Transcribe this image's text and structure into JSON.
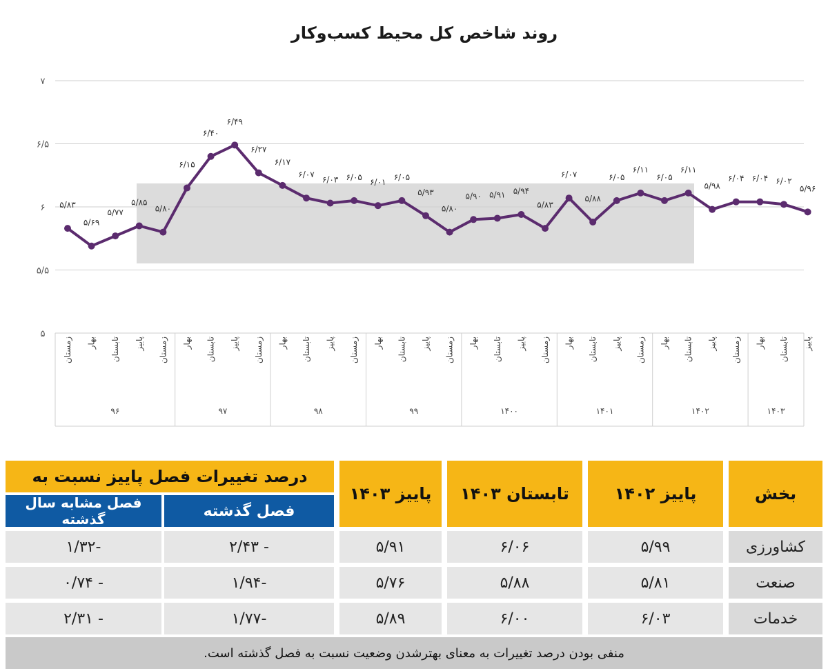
{
  "chart_data": {
    "type": "line",
    "title": "روند شاخص کل محیط کسب‌وکار",
    "xlabel": "",
    "ylabel": "",
    "ylim": [
      5,
      7
    ],
    "yticks": [
      "۵",
      "۵/۵",
      "۶",
      "۶/۵",
      "۷"
    ],
    "ytick_values": [
      5,
      5.5,
      6,
      6.5,
      7
    ],
    "grid": true,
    "line_color": "#5b2b6e",
    "groups": [
      {
        "year": "۹۶",
        "seasons": [
          "زمستان",
          "بهار",
          "تابستان",
          "پاییز",
          "زمستان"
        ]
      },
      {
        "year": "۹۷",
        "seasons": [
          "بهار",
          "تابستان",
          "پاییز",
          "زمستان"
        ]
      },
      {
        "year": "۹۸",
        "seasons": [
          "بهار",
          "تابستان",
          "پاییز",
          "زمستان"
        ]
      },
      {
        "year": "۹۹",
        "seasons": [
          "بهار",
          "تابستان",
          "پاییز",
          "زمستان"
        ]
      },
      {
        "year": "۱۴۰۰",
        "seasons": [
          "بهار",
          "تابستان",
          "پاییز",
          "زمستان"
        ]
      },
      {
        "year": "۱۴۰۱",
        "seasons": [
          "بهار",
          "تابستان",
          "پاییز",
          "زمستان"
        ]
      },
      {
        "year": "۱۴۰۲",
        "seasons": [
          "بهار",
          "تابستان",
          "پاییز",
          "زمستان"
        ]
      },
      {
        "year": "۱۴۰۳",
        "seasons": [
          "بهار",
          "تابستان",
          "پاییز"
        ]
      }
    ],
    "values": [
      5.83,
      5.69,
      5.77,
      5.85,
      5.8,
      6.15,
      6.4,
      6.49,
      6.27,
      6.17,
      6.07,
      6.03,
      6.05,
      6.01,
      6.05,
      5.93,
      5.8,
      5.9,
      5.91,
      5.94,
      5.83,
      6.07,
      5.88,
      6.05,
      6.11,
      6.05,
      6.11,
      5.98,
      6.04,
      6.04,
      6.02,
      5.96
    ],
    "labels": [
      "۵/۸۳",
      "۵/۶۹",
      "۵/۷۷",
      "۵/۸۵",
      "۵/۸۰",
      "۶/۱۵",
      "۶/۴۰",
      "۶/۴۹",
      "۶/۲۷",
      "۶/۱۷",
      "۶/۰۷",
      "۶/۰۳",
      "۶/۰۵",
      "۶/۰۱",
      "۶/۰۵",
      "۵/۹۳",
      "۵/۸۰",
      "۵/۹۰",
      "۵/۹۱",
      "۵/۹۴",
      "۵/۸۳",
      "۶/۰۷",
      "۵/۸۸",
      "۶/۰۵",
      "۶/۱۱",
      "۶/۰۵",
      "۶/۱۱",
      "۵/۹۸",
      "۶/۰۴",
      "۶/۰۴",
      "۶/۰۲",
      "۵/۹۶"
    ]
  },
  "table": {
    "headers": {
      "sector": "بخش",
      "autumn_1402": "پاییز ۱۴۰۲",
      "summer_1403": "تابستان ۱۴۰۳",
      "autumn_1403": "پاییز ۱۴۰۳",
      "change_group": "درصد تغییرات فصل پاییز نسبت به",
      "prev_season": "فصل گذشته",
      "same_season_last_year": "فصل مشابه سال گذشته"
    },
    "rows": [
      {
        "sector": "کشاورزی",
        "autumn_1402": "۵/۹۹",
        "summer_1403": "۶/۰۶",
        "autumn_1403": "۵/۹۱",
        "prev_season": "- ۲/۴۳",
        "same_season_last_year": "-۱/۳۲"
      },
      {
        "sector": "صنعت",
        "autumn_1402": "۵/۸۱",
        "summer_1403": "۵/۸۸",
        "autumn_1403": "۵/۷۶",
        "prev_season": "-۱/۹۴",
        "same_season_last_year": "- ۰/۷۴"
      },
      {
        "sector": "خدمات",
        "autumn_1402": "۶/۰۳",
        "summer_1403": "۶/۰۰",
        "autumn_1403": "۵/۸۹",
        "prev_season": "-۱/۷۷",
        "same_season_last_year": "- ۲/۳۱"
      }
    ],
    "note": "منفی بودن درصد تغییرات به معنای بهترشدن وضعیت نسبت به فصل گذشته است."
  }
}
